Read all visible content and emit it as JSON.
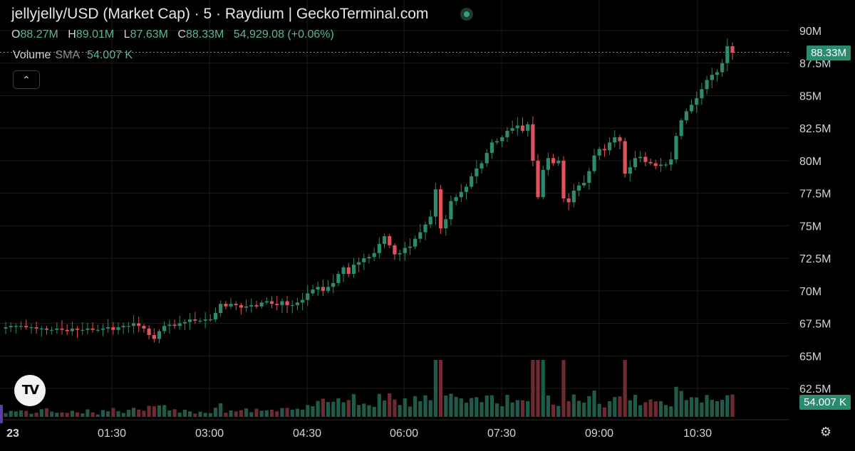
{
  "header": {
    "title": "jellyjelly/USD (Market Cap) · 5 · Raydium | GeckoTerminal.com"
  },
  "ohlc": {
    "o_label": "O",
    "o_value": "88.27M",
    "h_label": "H",
    "h_value": "89.01M",
    "l_label": "L",
    "l_value": "87.63M",
    "c_label": "C",
    "c_value": "88.33M",
    "change": "54,929.08 (+0.06%)"
  },
  "volume_legend": {
    "label": "Volume",
    "indicator": "SMA",
    "value": "54.007 K"
  },
  "price_badge": "88.33M",
  "volume_badge": "54.007 K",
  "collapse_icon": "chevron-up-icon",
  "logo": "TV",
  "colors": {
    "up": "#2c8a6e",
    "down": "#e0525a",
    "vol_up": "#1f5a4a",
    "vol_down": "#6e2a2e",
    "grid": "#1c1c1c"
  },
  "chart_data": {
    "type": "candlestick",
    "y_axis_ticks": [
      "62.5M",
      "65M",
      "67.5M",
      "70M",
      "72.5M",
      "75M",
      "77.5M",
      "80M",
      "82.5M",
      "85M",
      "87.5M",
      "90M"
    ],
    "x_axis_ticks": [
      "23",
      "01:30",
      "03:00",
      "04:30",
      "06:00",
      "07:30",
      "09:00",
      "10:30"
    ],
    "ylim": [
      61.8,
      91
    ],
    "unit": "M",
    "last_price": 88.33,
    "candles_close": [
      67.2,
      67.3,
      67.3,
      67.3,
      67.2,
      67.2,
      67.1,
      67.1,
      67.0,
      67.0,
      67.1,
      67.0,
      66.9,
      67.1,
      67.0,
      67.0,
      67.1,
      67.0,
      67.0,
      67.1,
      67.2,
      67.0,
      67.2,
      67.3,
      67.3,
      67.5,
      67.3,
      67.1,
      66.6,
      66.3,
      66.9,
      67.3,
      67.4,
      67.3,
      67.5,
      67.6,
      67.8,
      67.7,
      67.7,
      67.8,
      67.8,
      68.3,
      69.0,
      68.8,
      69.0,
      68.9,
      68.7,
      68.8,
      68.9,
      68.8,
      69.1,
      69.2,
      69.0,
      68.9,
      69.2,
      68.9,
      68.9,
      69.1,
      69.3,
      69.8,
      70.1,
      70.3,
      70.0,
      70.3,
      70.6,
      71.3,
      71.8,
      71.3,
      72.0,
      72.2,
      72.5,
      72.6,
      72.9,
      73.6,
      74.2,
      73.5,
      72.8,
      72.9,
      73.3,
      73.4,
      74.0,
      74.5,
      75.1,
      75.7,
      77.8,
      74.8,
      75.5,
      76.9,
      77.2,
      77.6,
      78.0,
      78.8,
      79.4,
      79.8,
      80.6,
      81.4,
      81.5,
      81.8,
      82.3,
      82.5,
      82.7,
      82.3,
      82.8,
      80.0,
      77.2,
      79.3,
      80.2,
      79.8,
      80.0,
      77.1,
      76.8,
      77.7,
      78.1,
      78.3,
      79.2,
      80.4,
      80.9,
      80.8,
      81.4,
      81.8,
      81.5,
      79.0,
      79.5,
      80.2,
      80.3,
      79.9,
      79.8,
      79.6,
      79.7,
      79.7,
      80.1,
      81.9,
      83.1,
      83.8,
      84.3,
      84.8,
      85.5,
      86.2,
      86.6,
      86.8,
      87.5,
      88.8,
      88.3
    ],
    "volume_max_label": "68.3"
  }
}
